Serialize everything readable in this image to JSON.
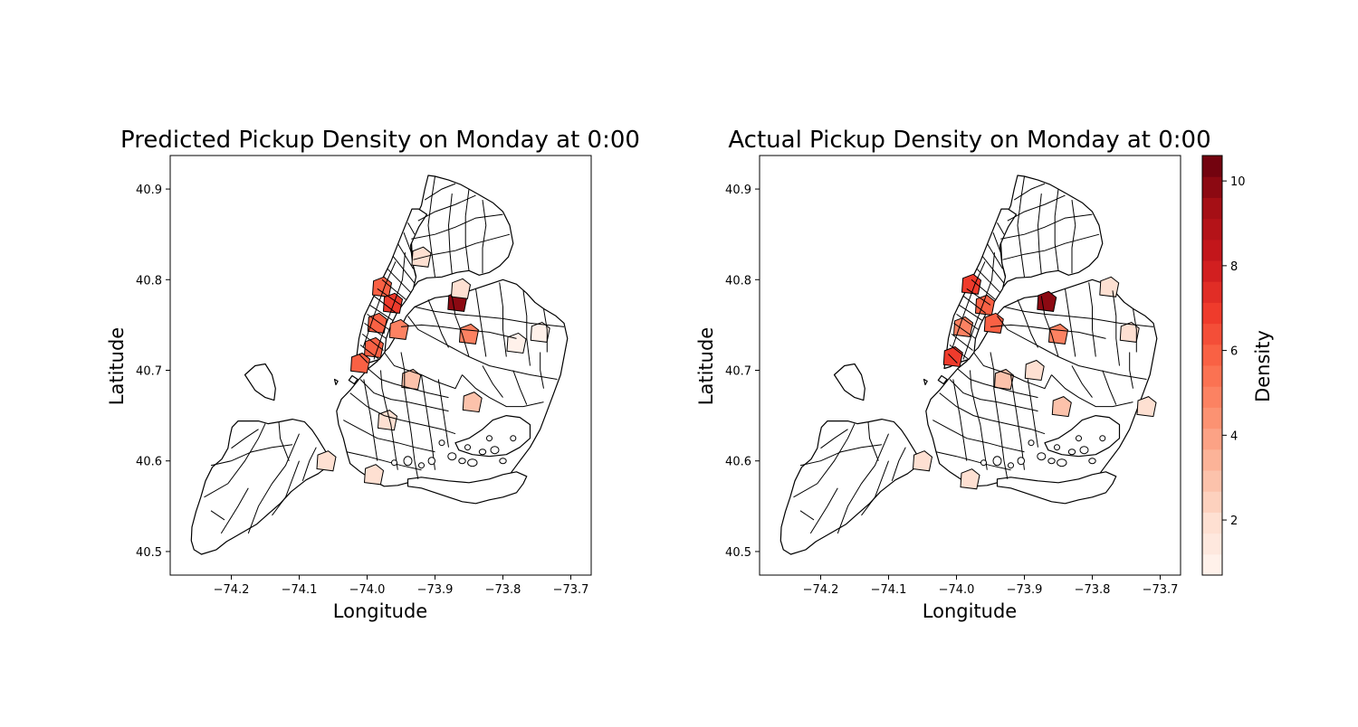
{
  "chart_data": [
    {
      "type": "choropleth",
      "title": "Predicted Pickup Density on Monday at 0:00",
      "xlabel": "Longitude",
      "ylabel": "Latitude",
      "xlim": [
        -74.29,
        -73.67
      ],
      "ylim": [
        40.474,
        40.937
      ],
      "xticks": [
        -74.2,
        -74.1,
        -74.0,
        -73.9,
        -73.8,
        -73.7
      ],
      "xtick_labels": [
        "−74.2",
        "−74.1",
        "−74.0",
        "−73.9",
        "−73.8",
        "−73.7"
      ],
      "yticks": [
        40.5,
        40.6,
        40.7,
        40.8,
        40.9
      ],
      "ytick_labels": [
        "40.5",
        "40.6",
        "40.7",
        "40.8",
        "40.9"
      ],
      "grid": false,
      "regions": [
        {
          "lon": -73.867,
          "lat": 40.776,
          "value": 10
        },
        {
          "lon": -73.978,
          "lat": 40.792,
          "value": 6
        },
        {
          "lon": -73.962,
          "lat": 40.774,
          "value": 7
        },
        {
          "lon": -73.985,
          "lat": 40.752,
          "value": 6
        },
        {
          "lon": -73.99,
          "lat": 40.725,
          "value": 6
        },
        {
          "lon": -74.01,
          "lat": 40.708,
          "value": 6
        },
        {
          "lon": -73.953,
          "lat": 40.745,
          "value": 5
        },
        {
          "lon": -73.85,
          "lat": 40.74,
          "value": 5
        },
        {
          "lon": -73.935,
          "lat": 40.69,
          "value": 3
        },
        {
          "lon": -73.845,
          "lat": 40.665,
          "value": 3
        },
        {
          "lon": -73.92,
          "lat": 40.825,
          "value": 2
        },
        {
          "lon": -73.862,
          "lat": 40.79,
          "value": 2
        },
        {
          "lon": -73.78,
          "lat": 40.73,
          "value": 1
        },
        {
          "lon": -73.745,
          "lat": 40.742,
          "value": 1
        },
        {
          "lon": -73.97,
          "lat": 40.645,
          "value": 2
        },
        {
          "lon": -73.99,
          "lat": 40.585,
          "value": 2
        },
        {
          "lon": -74.06,
          "lat": 40.6,
          "value": 2
        }
      ]
    },
    {
      "type": "choropleth",
      "title": "Actual Pickup Density on Monday at 0:00",
      "xlabel": "Longitude",
      "ylabel": "Latitude",
      "xlim": [
        -74.29,
        -73.67
      ],
      "ylim": [
        40.474,
        40.937
      ],
      "xticks": [
        -74.2,
        -74.1,
        -74.0,
        -73.9,
        -73.8,
        -73.7
      ],
      "xtick_labels": [
        "−74.2",
        "−74.1",
        "−74.0",
        "−73.9",
        "−73.8",
        "−73.7"
      ],
      "yticks": [
        40.5,
        40.6,
        40.7,
        40.8,
        40.9
      ],
      "ytick_labels": [
        "40.5",
        "40.6",
        "40.7",
        "40.8",
        "40.9"
      ],
      "grid": false,
      "regions": [
        {
          "lon": -73.867,
          "lat": 40.776,
          "value": 10
        },
        {
          "lon": -73.978,
          "lat": 40.795,
          "value": 7
        },
        {
          "lon": -73.958,
          "lat": 40.772,
          "value": 6
        },
        {
          "lon": -73.99,
          "lat": 40.748,
          "value": 5
        },
        {
          "lon": -74.005,
          "lat": 40.715,
          "value": 7
        },
        {
          "lon": -73.945,
          "lat": 40.752,
          "value": 6
        },
        {
          "lon": -73.85,
          "lat": 40.74,
          "value": 5
        },
        {
          "lon": -73.93,
          "lat": 40.69,
          "value": 3
        },
        {
          "lon": -73.845,
          "lat": 40.66,
          "value": 3
        },
        {
          "lon": -73.885,
          "lat": 40.7,
          "value": 2
        },
        {
          "lon": -73.72,
          "lat": 40.66,
          "value": 2
        },
        {
          "lon": -73.775,
          "lat": 40.792,
          "value": 2
        },
        {
          "lon": -73.745,
          "lat": 40.742,
          "value": 2
        },
        {
          "lon": -74.05,
          "lat": 40.6,
          "value": 2
        },
        {
          "lon": -73.98,
          "lat": 40.58,
          "value": 2
        }
      ]
    }
  ],
  "colorbar": {
    "label": "Density",
    "min": 0.7,
    "max": 10.6,
    "ticks": [
      2,
      4,
      6,
      8,
      10
    ],
    "tick_labels": [
      "2",
      "4",
      "6",
      "8",
      "10"
    ],
    "levels": 20,
    "colors": [
      "#fff5f0",
      "#fee0d2",
      "#fcbba1",
      "#fc9272",
      "#fb6a4a",
      "#ef3b2c",
      "#cb181d",
      "#a50f15",
      "#67000d"
    ]
  }
}
